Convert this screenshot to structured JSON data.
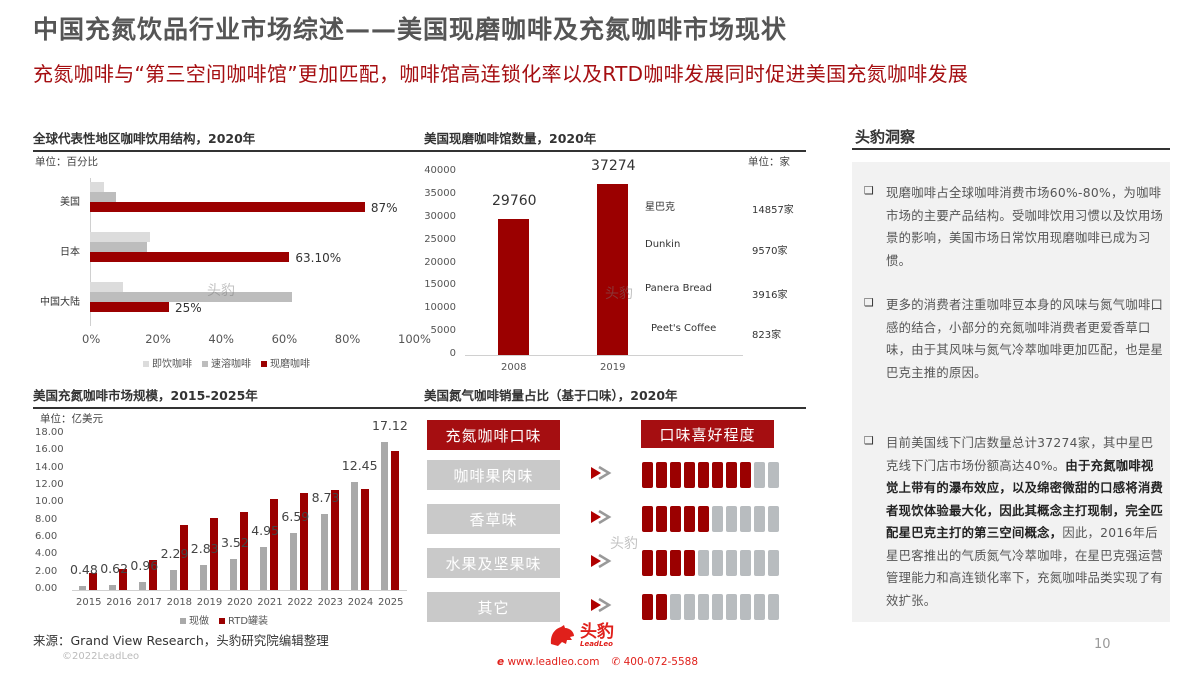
{
  "header": {
    "title": "中国充氮饮品行业市场综述——美国现磨咖啡及充氮咖啡市场现状",
    "subtitle": "充氮咖啡与“第三空间咖啡馆”更加匹配，咖啡馆高连锁化率以及RTD咖啡发展同时促进美国充氮咖啡发展"
  },
  "watermark": "头豹",
  "chart1": {
    "section_title": "全球代表性地区咖啡饮用结构，2020年",
    "unit": "单位：百分比",
    "x_ticks": [
      "0%",
      "20%",
      "40%",
      "60%",
      "80%",
      "100%"
    ],
    "legend": [
      "即饮咖啡",
      "速溶咖啡",
      "现磨咖啡"
    ],
    "categories": [
      "美国",
      "日本",
      "中国大陆"
    ],
    "value_labels": [
      "87%",
      "63.10%",
      "25%"
    ]
  },
  "chart2": {
    "section_title": "美国现磨咖啡馆数量，2020年",
    "unit": "单位：家",
    "y_ticks": [
      "40000",
      "35000",
      "30000",
      "25000",
      "20000",
      "15000",
      "10000",
      "5000",
      "0"
    ],
    "categories": [
      "2008",
      "2019"
    ],
    "value_labels": [
      "29760",
      "37274"
    ],
    "brands": [
      {
        "name": "星巴克",
        "count": "14857家"
      },
      {
        "name": "Dunkin",
        "count": "9570家"
      },
      {
        "name": "Panera Bread",
        "count": "3916家"
      },
      {
        "name": "Peet's Coffee",
        "count": "823家"
      }
    ]
  },
  "chart3": {
    "section_title": "美国充氮咖啡市场规模，2015-2025年",
    "unit": "单位：亿美元",
    "y_ticks": [
      "18.00",
      "16.00",
      "14.00",
      "12.00",
      "10.00",
      "8.00",
      "6.00",
      "4.00",
      "2.00",
      "0.00"
    ],
    "categories": [
      "2015",
      "2016",
      "2017",
      "2018",
      "2019",
      "2020",
      "2021",
      "2022",
      "2023",
      "2024",
      "2025"
    ],
    "value_labels": [
      "0.48",
      "0.62",
      "0.96",
      "2.29",
      "2.83",
      "3.52",
      "4.95",
      "6.59",
      "8.73",
      "12.45",
      "17.12"
    ],
    "legend": [
      "现做",
      "RTD罐装"
    ]
  },
  "chart4": {
    "section_title": "美国氮气咖啡销量占比（基于口味），2020年",
    "head_left": "充氮咖啡口味",
    "head_right": "口味喜好程度",
    "rows": [
      {
        "flavor": "咖啡果肉味",
        "score": 8
      },
      {
        "flavor": "香草味",
        "score": 5
      },
      {
        "flavor": "水果及坚果味",
        "score": 4
      },
      {
        "flavor": "其它",
        "score": 2
      }
    ],
    "max_score": 10
  },
  "insight": {
    "title": "头豹洞察",
    "bullet_icon": "❑",
    "items": [
      {
        "text": "现磨咖啡占全球咖啡消费市场60%-80%，为咖啡市场的主要产品结构。受咖啡饮用习惯以及饮用场景的影响，美国市场日常饮用现磨咖啡已成为习惯。"
      },
      {
        "text": "更多的消费者注重咖啡豆本身的风味与氮气咖啡口感的结合，小部分的充氮咖啡消费者更爱香草口味，由于其风味与氮气冷萃咖啡更加匹配，也是星巴克主推的原因。"
      },
      {
        "text_pre": "目前美国线下门店数量总计37274家，其中星巴克线下门店市场份额高达40%。",
        "text_bold": "由于充氮咖啡视觉上带有的瀑布效应，以及绵密微甜的口感将消费者现饮体验最大化，因此其概念主打现制，完全匹配星巴克主打的第三空间概念，",
        "text_post": "因此，2016年后星巴客推出的气质氮气冷萃咖啡，在星巴克强运营管理能力和高连锁化率下，充氮咖啡品类实现了有效扩张。"
      }
    ]
  },
  "footer": {
    "source": "来源：Grand View Research，头豹研究院编辑整理",
    "copyright": "©2022LeadLeo",
    "brand": "头豹",
    "brand_sub": "LeadLeo",
    "website": "www.leadleo.com",
    "phone": "400-072-5588",
    "page": "10"
  },
  "colors": {
    "accent": "#a50e11",
    "bar_red": "#9b0000",
    "gray_light": "#dcdcdc",
    "gray_mid": "#bdbdbd",
    "gray_bar": "#a9a9a9"
  },
  "chart_data": [
    {
      "type": "bar",
      "orientation": "horizontal",
      "title": "全球代表性地区咖啡饮用结构，2020年",
      "xlabel": "单位：百分比",
      "categories": [
        "美国",
        "日本",
        "中国大陆"
      ],
      "series": [
        {
          "name": "即饮咖啡",
          "values": [
            4.5,
            19,
            10.5
          ]
        },
        {
          "name": "速溶咖啡",
          "values": [
            8.2,
            18,
            64
          ]
        },
        {
          "name": "现磨咖啡",
          "values": [
            87,
            63.1,
            25
          ]
        }
      ],
      "xlim": [
        0,
        100
      ],
      "legend_position": "bottom"
    },
    {
      "type": "bar",
      "title": "美国现磨咖啡馆数量，2020年",
      "ylabel": "单位：家",
      "categories": [
        "2008",
        "2019"
      ],
      "values": [
        29760,
        37274
      ],
      "ylim": [
        0,
        40000
      ],
      "annotations": [
        {
          "label": "星巴克",
          "value": 14857
        },
        {
          "label": "Dunkin",
          "value": 9570
        },
        {
          "label": "Panera Bread",
          "value": 3916
        },
        {
          "label": "Peet's Coffee",
          "value": 823
        }
      ]
    },
    {
      "type": "bar",
      "title": "美国充氮咖啡市场规模，2015-2025年",
      "ylabel": "单位：亿美元",
      "categories": [
        "2015",
        "2016",
        "2017",
        "2018",
        "2019",
        "2020",
        "2021",
        "2022",
        "2023",
        "2024",
        "2025"
      ],
      "series": [
        {
          "name": "现做",
          "values": [
            0.48,
            0.62,
            0.96,
            2.29,
            2.83,
            3.52,
            4.95,
            6.59,
            8.73,
            12.45,
            17.12
          ]
        },
        {
          "name": "RTD罐装",
          "values": [
            2.0,
            2.4,
            3.5,
            7.5,
            8.3,
            9.0,
            10.5,
            11.2,
            11.5,
            11.7,
            16.0
          ]
        }
      ],
      "ylim": [
        0,
        18
      ],
      "legend_position": "bottom"
    },
    {
      "type": "table",
      "title": "美国氮气咖啡销量占比（基于口味），2020年",
      "columns": [
        "充氮咖啡口味",
        "口味喜好程度"
      ],
      "rows": [
        [
          "咖啡果肉味",
          8
        ],
        [
          "香草味",
          5
        ],
        [
          "水果及坚果味",
          4
        ],
        [
          "其它",
          2
        ]
      ],
      "scale_max": 10
    }
  ]
}
